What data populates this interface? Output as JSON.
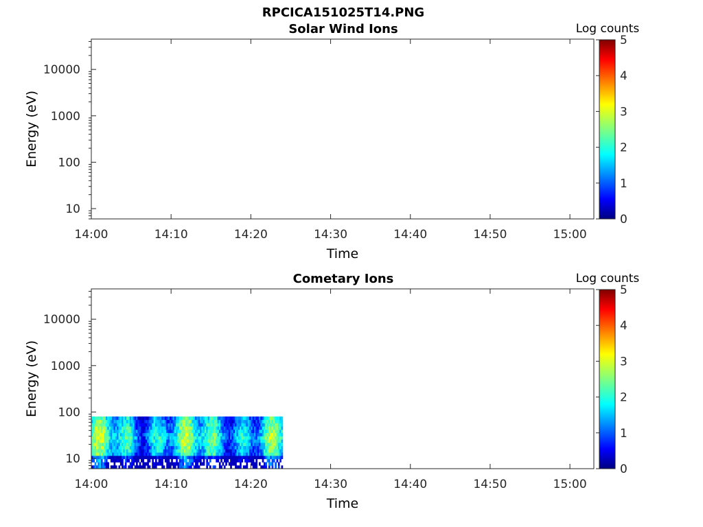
{
  "figure_title": "RPCICA151025T14.PNG",
  "chart_data": [
    {
      "type": "heatmap",
      "title": "Solar Wind Ions",
      "xlabel": "Time",
      "ylabel": "Energy (eV)",
      "yscale": "log",
      "xlim": [
        "14:00",
        "15:03"
      ],
      "ylim": [
        6,
        45000
      ],
      "xticks": [
        "14:00",
        "14:10",
        "14:20",
        "14:30",
        "14:40",
        "14:50",
        "15:00"
      ],
      "yticks": [
        10,
        100,
        1000,
        10000
      ],
      "colorbar": {
        "label": "Log counts",
        "range": [
          0,
          5
        ],
        "ticks": [
          0,
          1,
          2,
          3,
          4,
          5
        ],
        "colormap": "jet"
      },
      "data": {
        "time_start": "",
        "time_end": "",
        "energy_range": [],
        "typical_log_counts": null
      }
    },
    {
      "type": "heatmap",
      "title": "Cometary Ions",
      "xlabel": "Time",
      "ylabel": "Energy (eV)",
      "yscale": "log",
      "xlim": [
        "14:00",
        "15:03"
      ],
      "ylim": [
        6,
        45000
      ],
      "xticks": [
        "14:00",
        "14:10",
        "14:20",
        "14:30",
        "14:40",
        "14:50",
        "15:00"
      ],
      "yticks": [
        10,
        100,
        1000,
        10000
      ],
      "colorbar": {
        "label": "Log counts",
        "range": [
          0,
          5
        ],
        "ticks": [
          0,
          1,
          2,
          3,
          4,
          5
        ],
        "colormap": "jet"
      },
      "data": {
        "time_start": "14:00",
        "time_end": "14:24",
        "energy_range": [
          6,
          80
        ],
        "typical_log_counts": [
          0.5,
          3
        ]
      }
    }
  ]
}
